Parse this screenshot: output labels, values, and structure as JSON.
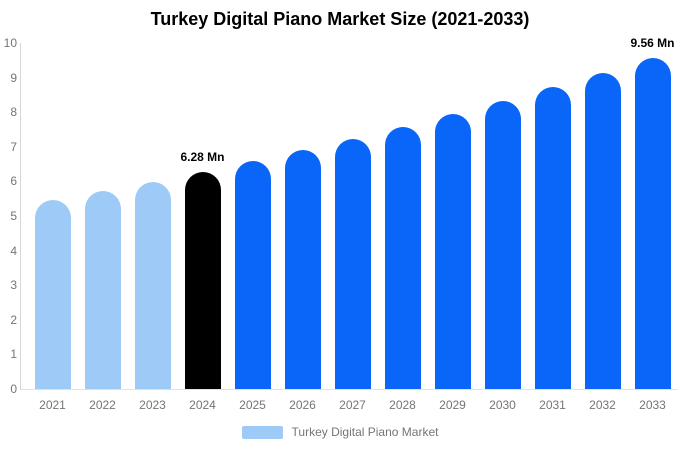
{
  "chart_data": {
    "type": "bar",
    "title": "Turkey Digital Piano Market Size (2021-2033)",
    "categories": [
      "2021",
      "2022",
      "2023",
      "2024",
      "2025",
      "2026",
      "2027",
      "2028",
      "2029",
      "2030",
      "2031",
      "2032",
      "2033"
    ],
    "values": [
      5.46,
      5.72,
      5.99,
      6.28,
      6.58,
      6.9,
      7.23,
      7.58,
      7.94,
      8.32,
      8.72,
      9.14,
      9.56
    ],
    "unit": "Mn",
    "bar_roles": [
      "historical",
      "historical",
      "historical",
      "highlight",
      "forecast",
      "forecast",
      "forecast",
      "forecast",
      "forecast",
      "forecast",
      "forecast",
      "forecast",
      "forecast"
    ],
    "annotations": [
      {
        "category": "2024",
        "text": "6.28 Mn"
      },
      {
        "category": "2033",
        "text": "9.56 Mn"
      }
    ],
    "xlabel": "",
    "ylabel": "",
    "ylim": [
      0,
      10
    ],
    "ytick_step": 1,
    "yticks": [
      0,
      1,
      2,
      3,
      4,
      5,
      6,
      7,
      8,
      9,
      10
    ],
    "grid": false,
    "legend": {
      "position": "bottom-center",
      "items": [
        {
          "label": "Turkey Digital Piano Market",
          "color_key": "historical"
        }
      ]
    }
  },
  "colors": {
    "historical": "#9ecaf8",
    "highlight": "#000000",
    "forecast": "#0a66f8",
    "axis_text": "#757575",
    "axis_line_left": "#d6d6d6",
    "axis_line_bottom": "#e2e2e2",
    "title_text": "#000000",
    "annotation_text": "#000000",
    "legend_text": "#757575",
    "background": "#ffffff"
  }
}
